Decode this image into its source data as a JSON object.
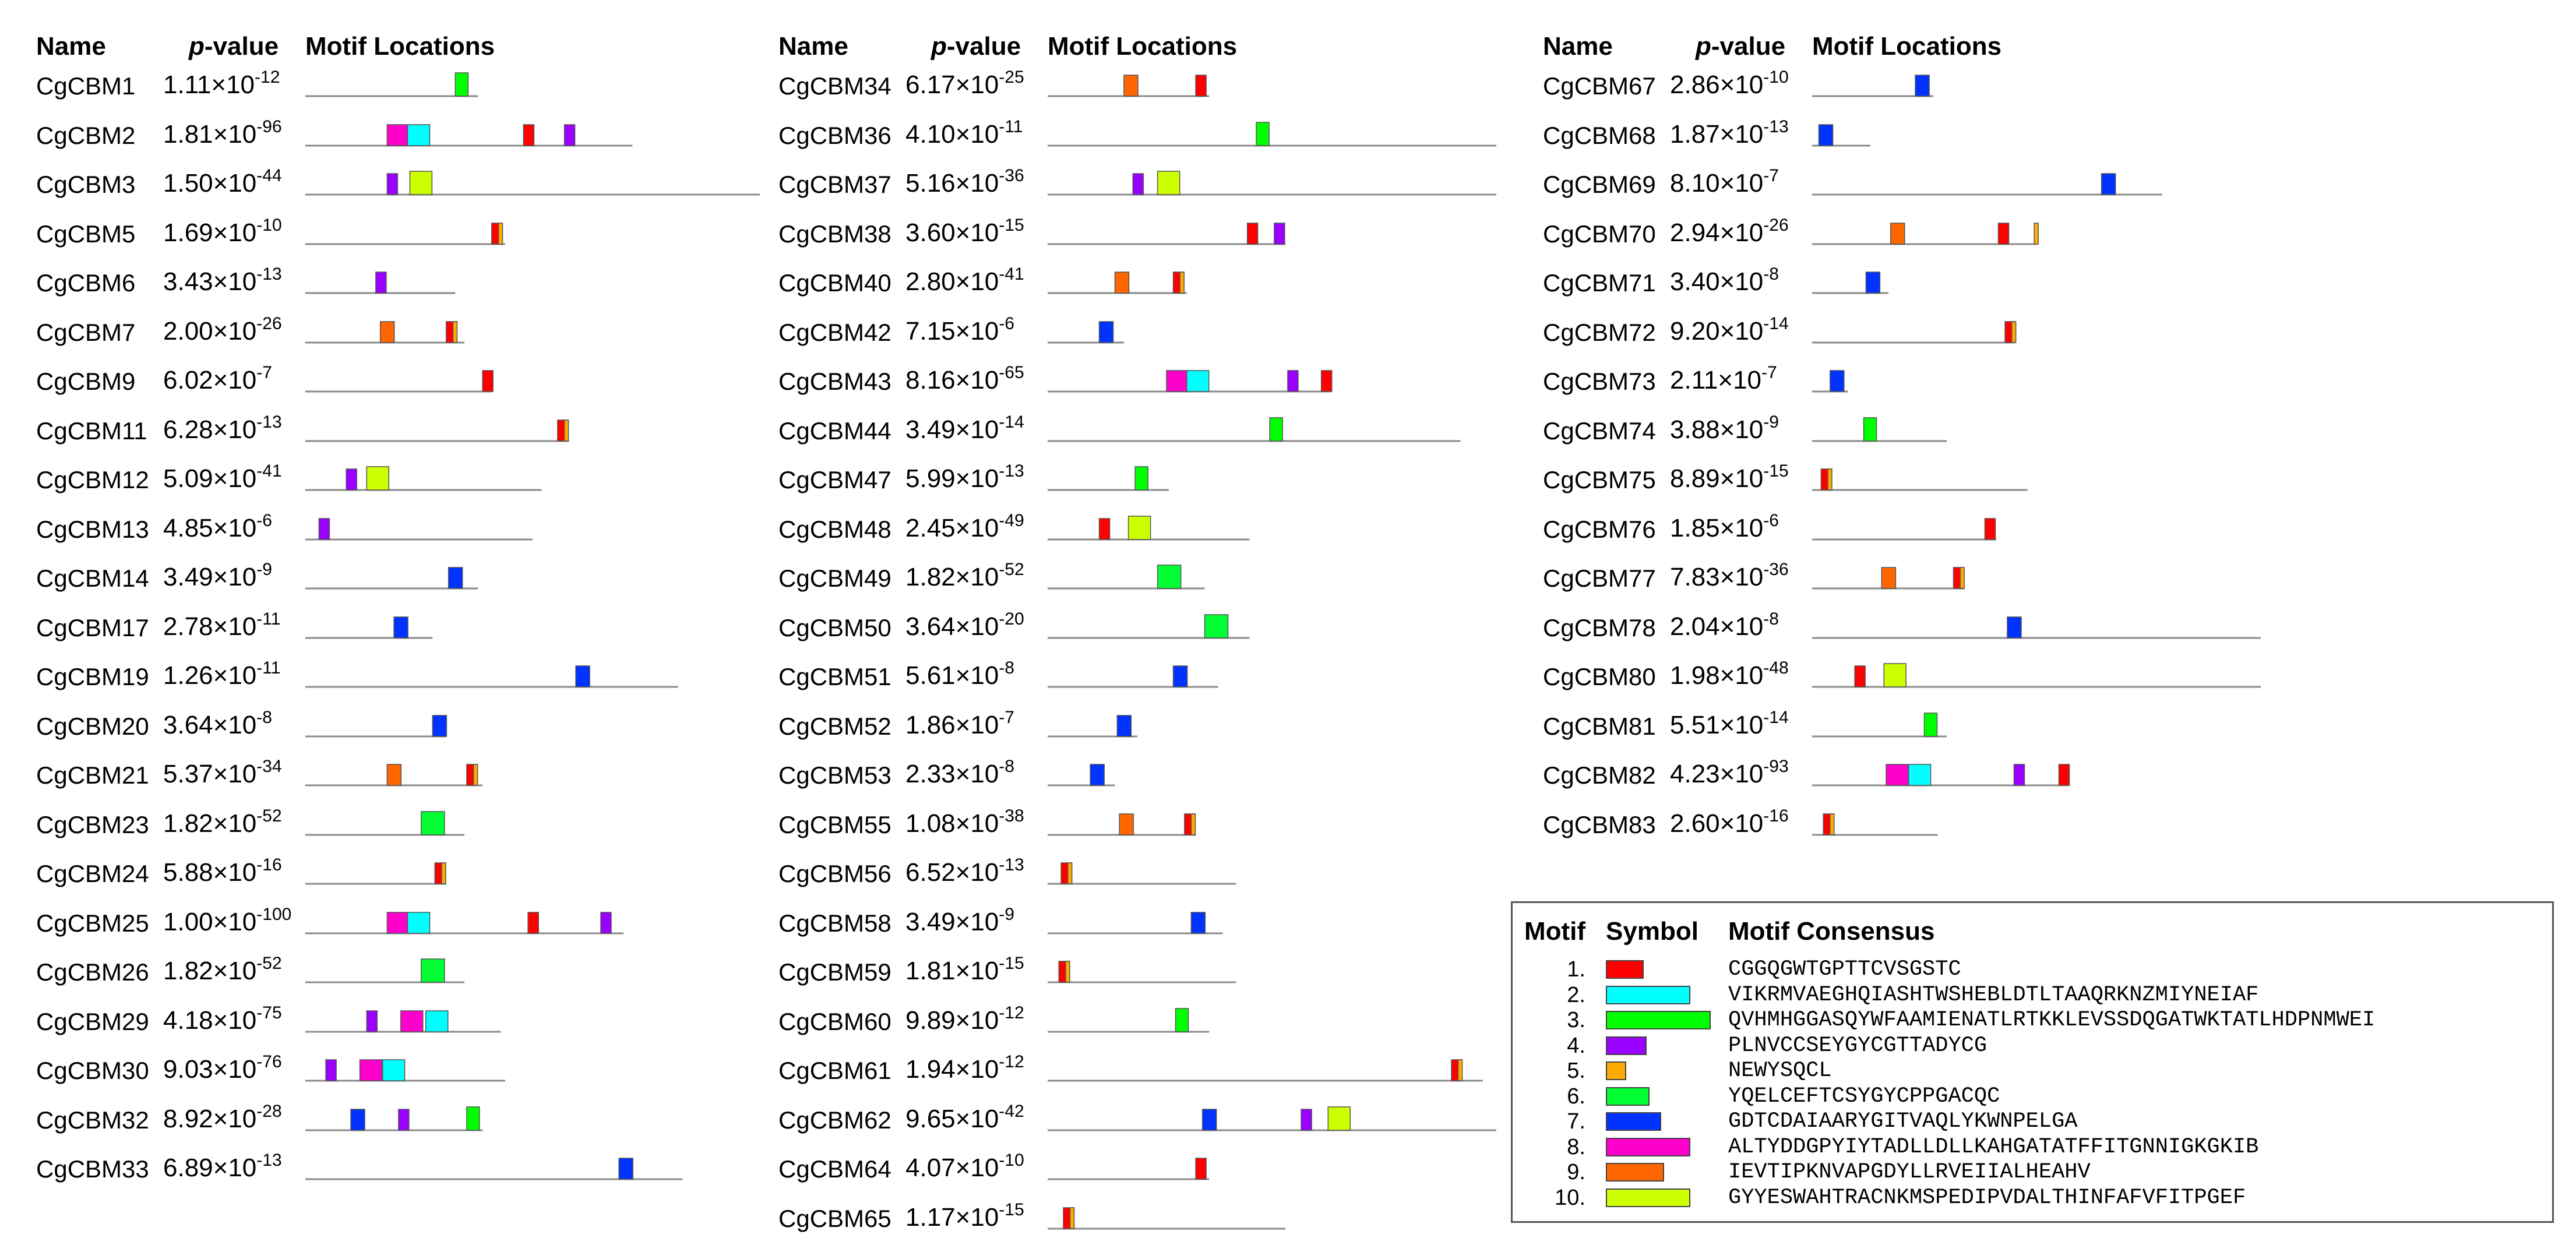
{
  "headers": {
    "name": "Name",
    "p_italic": "p",
    "p_rest": "-value",
    "locations": "Motif Locations"
  },
  "motif_colors": {
    "1": "#ff0000",
    "2": "#00ffff",
    "3": "#00ff00",
    "4": "#9900ff",
    "5": "#ffaa00",
    "6": "#00ff33",
    "7": "#0033ff",
    "8": "#ff00cc",
    "9": "#ff6600",
    "10": "#ccff00"
  },
  "columns": [
    {
      "rows": [
        {
          "name": "CgCBM1",
          "p_mant": "1.11×10",
          "p_exp": "-12",
          "len": 0.38,
          "motifs": [
            [
              3,
              0.33
            ]
          ]
        },
        {
          "name": "CgCBM2",
          "p_mant": "1.81×10",
          "p_exp": "-96",
          "len": 0.72,
          "motifs": [
            [
              8,
              0.18
            ],
            [
              2,
              0.225
            ],
            [
              1,
              0.48
            ],
            [
              4,
              0.57
            ]
          ]
        },
        {
          "name": "CgCBM3",
          "p_mant": "1.50×10",
          "p_exp": "-44",
          "len": 1.0,
          "motifs": [
            [
              4,
              0.18
            ],
            [
              10,
              0.23
            ]
          ]
        },
        {
          "name": "CgCBM5",
          "p_mant": "1.69×10",
          "p_exp": "-10",
          "len": 0.44,
          "motifs": [
            [
              1,
              0.41
            ],
            [
              5,
              0.425
            ]
          ]
        },
        {
          "name": "CgCBM6",
          "p_mant": "3.43×10",
          "p_exp": "-13",
          "len": 0.33,
          "motifs": [
            [
              4,
              0.155
            ]
          ]
        },
        {
          "name": "CgCBM7",
          "p_mant": "2.00×10",
          "p_exp": "-26",
          "len": 0.35,
          "motifs": [
            [
              9,
              0.165
            ],
            [
              1,
              0.31
            ],
            [
              5,
              0.325
            ]
          ]
        },
        {
          "name": "CgCBM9",
          "p_mant": "6.02×10",
          "p_exp": "-7",
          "len": 0.41,
          "motifs": [
            [
              1,
              0.39
            ]
          ]
        },
        {
          "name": "CgCBM11",
          "p_mant": "6.28×10",
          "p_exp": "-13",
          "len": 0.58,
          "motifs": [
            [
              1,
              0.555
            ],
            [
              5,
              0.57
            ]
          ]
        },
        {
          "name": "CgCBM12",
          "p_mant": "5.09×10",
          "p_exp": "-41",
          "len": 0.52,
          "motifs": [
            [
              4,
              0.09
            ],
            [
              10,
              0.135
            ]
          ]
        },
        {
          "name": "CgCBM13",
          "p_mant": "4.85×10",
          "p_exp": "-6",
          "len": 0.5,
          "motifs": [
            [
              4,
              0.03
            ]
          ]
        },
        {
          "name": "CgCBM14",
          "p_mant": "3.49×10",
          "p_exp": "-9",
          "len": 0.38,
          "motifs": [
            [
              7,
              0.315
            ]
          ]
        },
        {
          "name": "CgCBM17",
          "p_mant": "2.78×10",
          "p_exp": "-11",
          "len": 0.28,
          "motifs": [
            [
              7,
              0.195
            ]
          ]
        },
        {
          "name": "CgCBM19",
          "p_mant": "1.26×10",
          "p_exp": "-11",
          "len": 0.82,
          "motifs": [
            [
              7,
              0.595
            ]
          ]
        },
        {
          "name": "CgCBM20",
          "p_mant": "3.64×10",
          "p_exp": "-8",
          "len": 0.31,
          "motifs": [
            [
              7,
              0.28
            ]
          ]
        },
        {
          "name": "CgCBM21",
          "p_mant": "5.37×10",
          "p_exp": "-34",
          "len": 0.39,
          "motifs": [
            [
              9,
              0.18
            ],
            [
              1,
              0.355
            ],
            [
              5,
              0.37
            ]
          ]
        },
        {
          "name": "CgCBM23",
          "p_mant": "1.82×10",
          "p_exp": "-52",
          "len": 0.35,
          "motifs": [
            [
              6,
              0.255
            ]
          ]
        },
        {
          "name": "CgCBM24",
          "p_mant": "5.88×10",
          "p_exp": "-16",
          "len": 0.31,
          "motifs": [
            [
              1,
              0.285
            ],
            [
              5,
              0.3
            ]
          ]
        },
        {
          "name": "CgCBM25",
          "p_mant": "1.00×10",
          "p_exp": "-100",
          "len": 0.7,
          "motifs": [
            [
              8,
              0.18
            ],
            [
              2,
              0.225
            ],
            [
              1,
              0.49
            ],
            [
              4,
              0.65
            ]
          ]
        },
        {
          "name": "CgCBM26",
          "p_mant": "1.82×10",
          "p_exp": "-52",
          "len": 0.35,
          "motifs": [
            [
              6,
              0.255
            ]
          ]
        },
        {
          "name": "CgCBM29",
          "p_mant": "4.18×10",
          "p_exp": "-75",
          "len": 0.43,
          "motifs": [
            [
              4,
              0.135
            ],
            [
              8,
              0.21
            ],
            [
              2,
              0.265
            ]
          ]
        },
        {
          "name": "CgCBM30",
          "p_mant": "9.03×10",
          "p_exp": "-76",
          "len": 0.44,
          "motifs": [
            [
              4,
              0.045
            ],
            [
              8,
              0.12
            ],
            [
              2,
              0.17
            ]
          ]
        },
        {
          "name": "CgCBM32",
          "p_mant": "8.92×10",
          "p_exp": "-28",
          "len": 0.39,
          "motifs": [
            [
              7,
              0.1
            ],
            [
              4,
              0.205
            ],
            [
              3,
              0.355
            ]
          ]
        },
        {
          "name": "CgCBM33",
          "p_mant": "6.89×10",
          "p_exp": "-13",
          "len": 0.83,
          "motifs": [
            [
              7,
              0.69
            ]
          ]
        }
      ]
    },
    {
      "rows": [
        {
          "name": "CgCBM34",
          "p_mant": "6.17×10",
          "p_exp": "-25",
          "len": 0.36,
          "motifs": [
            [
              9,
              0.17
            ],
            [
              1,
              0.33
            ]
          ]
        },
        {
          "name": "CgCBM36",
          "p_mant": "4.10×10",
          "p_exp": "-11",
          "len": 1.0,
          "motifs": [
            [
              3,
              0.465
            ]
          ]
        },
        {
          "name": "CgCBM37",
          "p_mant": "5.16×10",
          "p_exp": "-36",
          "len": 1.0,
          "motifs": [
            [
              4,
              0.19
            ],
            [
              10,
              0.245
            ]
          ]
        },
        {
          "name": "CgCBM38",
          "p_mant": "3.60×10",
          "p_exp": "-15",
          "len": 0.53,
          "motifs": [
            [
              1,
              0.445
            ],
            [
              4,
              0.505
            ]
          ]
        },
        {
          "name": "CgCBM40",
          "p_mant": "2.80×10",
          "p_exp": "-41",
          "len": 0.31,
          "motifs": [
            [
              9,
              0.15
            ],
            [
              1,
              0.28
            ],
            [
              5,
              0.295
            ]
          ]
        },
        {
          "name": "CgCBM42",
          "p_mant": "7.15×10",
          "p_exp": "-6",
          "len": 0.17,
          "motifs": [
            [
              7,
              0.115
            ]
          ]
        },
        {
          "name": "CgCBM43",
          "p_mant": "8.16×10",
          "p_exp": "-65",
          "len": 0.63,
          "motifs": [
            [
              8,
              0.265
            ],
            [
              2,
              0.31
            ],
            [
              4,
              0.535
            ],
            [
              1,
              0.61
            ]
          ]
        },
        {
          "name": "CgCBM44",
          "p_mant": "3.49×10",
          "p_exp": "-14",
          "len": 0.92,
          "motifs": [
            [
              3,
              0.495
            ]
          ]
        },
        {
          "name": "CgCBM47",
          "p_mant": "5.99×10",
          "p_exp": "-13",
          "len": 0.27,
          "motifs": [
            [
              3,
              0.195
            ]
          ]
        },
        {
          "name": "CgCBM48",
          "p_mant": "2.45×10",
          "p_exp": "-49",
          "len": 0.45,
          "motifs": [
            [
              1,
              0.115
            ],
            [
              10,
              0.18
            ]
          ]
        },
        {
          "name": "CgCBM49",
          "p_mant": "1.82×10",
          "p_exp": "-52",
          "len": 0.35,
          "motifs": [
            [
              6,
              0.245
            ]
          ]
        },
        {
          "name": "CgCBM50",
          "p_mant": "3.64×10",
          "p_exp": "-20",
          "len": 0.45,
          "motifs": [
            [
              6,
              0.35
            ]
          ]
        },
        {
          "name": "CgCBM51",
          "p_mant": "5.61×10",
          "p_exp": "-8",
          "len": 0.38,
          "motifs": [
            [
              7,
              0.28
            ]
          ]
        },
        {
          "name": "CgCBM52",
          "p_mant": "1.86×10",
          "p_exp": "-7",
          "len": 0.2,
          "motifs": [
            [
              7,
              0.155
            ]
          ]
        },
        {
          "name": "CgCBM53",
          "p_mant": "2.33×10",
          "p_exp": "-8",
          "len": 0.15,
          "motifs": [
            [
              7,
              0.095
            ]
          ]
        },
        {
          "name": "CgCBM55",
          "p_mant": "1.08×10",
          "p_exp": "-38",
          "len": 0.33,
          "motifs": [
            [
              9,
              0.16
            ],
            [
              1,
              0.305
            ],
            [
              5,
              0.32
            ]
          ]
        },
        {
          "name": "CgCBM56",
          "p_mant": "6.52×10",
          "p_exp": "-13",
          "len": 0.42,
          "motifs": [
            [
              1,
              0.03
            ],
            [
              5,
              0.045
            ]
          ]
        },
        {
          "name": "CgCBM58",
          "p_mant": "3.49×10",
          "p_exp": "-9",
          "len": 0.39,
          "motifs": [
            [
              7,
              0.32
            ]
          ]
        },
        {
          "name": "CgCBM59",
          "p_mant": "1.81×10",
          "p_exp": "-15",
          "len": 0.42,
          "motifs": [
            [
              1,
              0.025
            ],
            [
              5,
              0.04
            ]
          ]
        },
        {
          "name": "CgCBM60",
          "p_mant": "9.89×10",
          "p_exp": "-12",
          "len": 0.36,
          "motifs": [
            [
              3,
              0.285
            ]
          ]
        },
        {
          "name": "CgCBM61",
          "p_mant": "1.94×10",
          "p_exp": "-12",
          "len": 0.97,
          "motifs": [
            [
              1,
              0.9
            ],
            [
              5,
              0.915
            ]
          ]
        },
        {
          "name": "CgCBM62",
          "p_mant": "9.65×10",
          "p_exp": "-42",
          "len": 1.0,
          "motifs": [
            [
              7,
              0.345
            ],
            [
              4,
              0.565
            ],
            [
              10,
              0.625
            ]
          ]
        },
        {
          "name": "CgCBM64",
          "p_mant": "4.07×10",
          "p_exp": "-10",
          "len": 0.36,
          "motifs": [
            [
              1,
              0.33
            ]
          ]
        },
        {
          "name": "CgCBM65",
          "p_mant": "1.17×10",
          "p_exp": "-15",
          "len": 0.53,
          "motifs": [
            [
              1,
              0.035
            ],
            [
              5,
              0.05
            ]
          ]
        }
      ]
    },
    {
      "rows": [
        {
          "name": "CgCBM67",
          "p_mant": "2.86×10",
          "p_exp": "-10",
          "len": 0.27,
          "motifs": [
            [
              7,
              0.23
            ]
          ]
        },
        {
          "name": "CgCBM68",
          "p_mant": "1.87×10",
          "p_exp": "-13",
          "len": 0.13,
          "motifs": [
            [
              7,
              0.015
            ]
          ]
        },
        {
          "name": "CgCBM69",
          "p_mant": "8.10×10",
          "p_exp": "-7",
          "len": 0.78,
          "motifs": [
            [
              7,
              0.645
            ]
          ]
        },
        {
          "name": "CgCBM70",
          "p_mant": "2.94×10",
          "p_exp": "-26",
          "len": 0.5,
          "motifs": [
            [
              9,
              0.175
            ],
            [
              1,
              0.415
            ],
            [
              5,
              0.495
            ]
          ]
        },
        {
          "name": "CgCBM71",
          "p_mant": "3.40×10",
          "p_exp": "-8",
          "len": 0.17,
          "motifs": [
            [
              7,
              0.12
            ]
          ]
        },
        {
          "name": "CgCBM72",
          "p_mant": "9.20×10",
          "p_exp": "-14",
          "len": 0.45,
          "motifs": [
            [
              1,
              0.43
            ],
            [
              5,
              0.445
            ]
          ]
        },
        {
          "name": "CgCBM73",
          "p_mant": "2.11×10",
          "p_exp": "-7",
          "len": 0.08,
          "motifs": [
            [
              7,
              0.04
            ]
          ]
        },
        {
          "name": "CgCBM74",
          "p_mant": "3.88×10",
          "p_exp": "-9",
          "len": 0.3,
          "motifs": [
            [
              3,
              0.115
            ]
          ]
        },
        {
          "name": "CgCBM75",
          "p_mant": "8.89×10",
          "p_exp": "-15",
          "len": 0.48,
          "motifs": [
            [
              1,
              0.02
            ],
            [
              5,
              0.035
            ]
          ]
        },
        {
          "name": "CgCBM76",
          "p_mant": "1.85×10",
          "p_exp": "-6",
          "len": 0.41,
          "motifs": [
            [
              1,
              0.385
            ]
          ]
        },
        {
          "name": "CgCBM77",
          "p_mant": "7.83×10",
          "p_exp": "-36",
          "len": 0.34,
          "motifs": [
            [
              9,
              0.155
            ],
            [
              1,
              0.315
            ],
            [
              5,
              0.33
            ]
          ]
        },
        {
          "name": "CgCBM78",
          "p_mant": "2.04×10",
          "p_exp": "-8",
          "len": 1.0,
          "motifs": [
            [
              7,
              0.435
            ]
          ]
        },
        {
          "name": "CgCBM80",
          "p_mant": "1.98×10",
          "p_exp": "-48",
          "len": 1.0,
          "motifs": [
            [
              1,
              0.095
            ],
            [
              10,
              0.16
            ]
          ]
        },
        {
          "name": "CgCBM81",
          "p_mant": "5.51×10",
          "p_exp": "-14",
          "len": 0.3,
          "motifs": [
            [
              3,
              0.25
            ]
          ]
        },
        {
          "name": "CgCBM82",
          "p_mant": "4.23×10",
          "p_exp": "-93",
          "len": 0.57,
          "motifs": [
            [
              8,
              0.165
            ],
            [
              2,
              0.215
            ],
            [
              4,
              0.45
            ],
            [
              1,
              0.55
            ]
          ]
        },
        {
          "name": "CgCBM83",
          "p_mant": "2.60×10",
          "p_exp": "-16",
          "len": 0.28,
          "motifs": [
            [
              1,
              0.025
            ],
            [
              5,
              0.04
            ]
          ]
        }
      ]
    }
  ],
  "legend": {
    "header_motif": "Motif",
    "header_symbol": "Symbol",
    "header_consensus": "Motif Consensus",
    "items": [
      {
        "num": "1.",
        "motif": 1,
        "consensus": "CGGQGWTGPTTCVSGSTC"
      },
      {
        "num": "2.",
        "motif": 2,
        "consensus": "VIKRMVAEGHQIASHTWSHEBLDTLTAAQRKNZMIYNEIAF"
      },
      {
        "num": "3.",
        "motif": 3,
        "consensus": "QVHMHGGASQYWFAAMIENATLRTKKLEVSSDQGATWKTATLHDPNMWEI"
      },
      {
        "num": "4.",
        "motif": 4,
        "consensus": "PLNVCCSEYGYCGTTADYCG"
      },
      {
        "num": "5.",
        "motif": 5,
        "consensus": "NEWYSQCL"
      },
      {
        "num": "6.",
        "motif": 6,
        "consensus": "YQELCEFTCSYGYCPPGACQC"
      },
      {
        "num": "7.",
        "motif": 7,
        "consensus": "GDTCDAIAARYGITVAQLYKWNPELGA"
      },
      {
        "num": "8.",
        "motif": 8,
        "consensus": "ALTYDDGPYIYTADLLDLLKAHGATATFFITGNNIGKGKIB"
      },
      {
        "num": "9.",
        "motif": 9,
        "consensus": "IEVTIPKNVAPGDYLLRVEIIALHEAHV"
      },
      {
        "num": "10.",
        "motif": 10,
        "consensus": "GYYESWAHTRACNKMSPEDIPVDALTHINFAFVFITPGEF"
      }
    ]
  }
}
